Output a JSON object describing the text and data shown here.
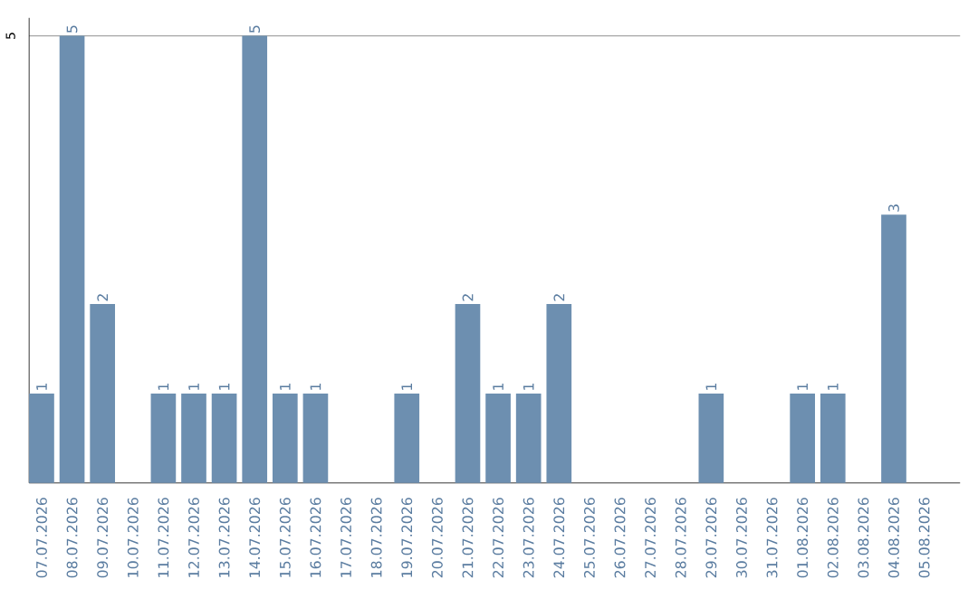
{
  "chart_data": {
    "type": "bar",
    "categories": [
      "07.07.2026",
      "08.07.2026",
      "09.07.2026",
      "10.07.2026",
      "11.07.2026",
      "12.07.2026",
      "13.07.2026",
      "14.07.2026",
      "15.07.2026",
      "16.07.2026",
      "17.07.2026",
      "18.07.2026",
      "19.07.2026",
      "20.07.2026",
      "21.07.2026",
      "22.07.2026",
      "23.07.2026",
      "24.07.2026",
      "25.07.2026",
      "26.07.2026",
      "27.07.2026",
      "28.07.2026",
      "29.07.2026",
      "30.07.2026",
      "31.07.2026",
      "01.08.2026",
      "02.08.2026",
      "03.08.2026",
      "04.08.2026",
      "05.08.2026"
    ],
    "values": [
      1,
      5,
      2,
      0,
      1,
      1,
      1,
      5,
      1,
      1,
      0,
      0,
      1,
      0,
      2,
      1,
      1,
      2,
      0,
      0,
      0,
      0,
      1,
      0,
      0,
      1,
      1,
      0,
      3,
      0
    ],
    "value_labels": [
      "1",
      "5",
      "2",
      null,
      "1",
      "1",
      "1",
      "5",
      "1",
      "1",
      null,
      null,
      "1",
      null,
      "2",
      "1",
      "1",
      "2",
      null,
      null,
      null,
      null,
      "1",
      null,
      null,
      "1",
      "1",
      null,
      "3",
      null
    ],
    "color": "#6d8fb0",
    "ylim": [
      0,
      5.2
    ],
    "yticks": [
      5
    ],
    "grid": "y"
  }
}
